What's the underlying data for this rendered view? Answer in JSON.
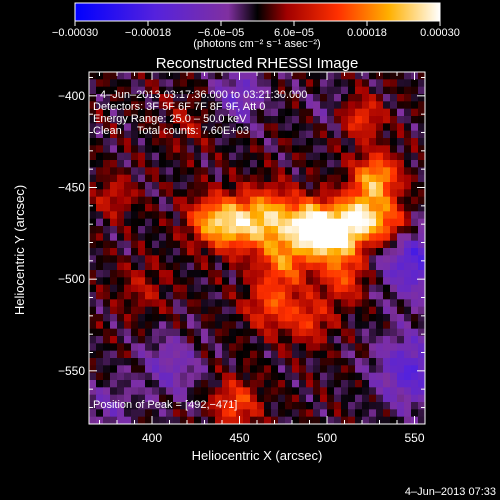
{
  "chart_data": {
    "type": "heatmap",
    "title": "Reconstructed RHESSI Image",
    "xlabel": "Heliocentric X (arcsec)",
    "ylabel": "Heliocentric Y (arcsec)",
    "xlim": [
      364,
      556
    ],
    "ylim": [
      -579,
      -387
    ],
    "x_ticks": [
      400,
      450,
      500,
      550
    ],
    "x_tick_labels": [
      "400",
      "450",
      "500",
      "550"
    ],
    "y_ticks": [
      -400,
      -450,
      -500,
      -550
    ],
    "y_tick_labels": [
      "−400",
      "−450",
      "−500",
      "−550"
    ],
    "colorbar": {
      "min": -0.0003,
      "max": 0.0003,
      "ticks": [
        -0.0003,
        -0.00018,
        -6e-05,
        6e-05,
        0.00018,
        0.0003
      ],
      "tick_labels": [
        "−0.00030",
        "−0.00018",
        "−6.0e−05",
        "6.0e−05",
        "0.00018",
        "0.00030"
      ],
      "units_label": "(photons cm⁻² s⁻¹ asec⁻²)"
    },
    "annotations": {
      "time_range": "4–Jun–2013 03:17:36.000 to 03:21:30.000",
      "detectors": "Detectors: 3F 5F 6F 7F 8F 9F, Att 0",
      "energy": "Energy Range: 25.0 – 50.0 keV",
      "method": "Clean     Total counts: 7.60E+03",
      "peak": "Position of Peak = [492,−471]"
    },
    "peak_position": [
      492,
      -471
    ],
    "total_counts": 7600,
    "energy_range_keV": [
      25.0,
      50.0
    ],
    "timestamp": "4–Jun–2013 07:33",
    "grid_cols": 48,
    "grid_rows": 48,
    "sources": [
      {
        "x": 492,
        "y": -471,
        "amp": 0.0003,
        "sigma": 9
      },
      {
        "x": 505,
        "y": -478,
        "amp": 0.00024,
        "sigma": 10
      },
      {
        "x": 518,
        "y": -466,
        "amp": 0.00023,
        "sigma": 9
      },
      {
        "x": 528,
        "y": -445,
        "amp": 0.00022,
        "sigma": 9
      },
      {
        "x": 535,
        "y": -470,
        "amp": 0.00016,
        "sigma": 9
      },
      {
        "x": 468,
        "y": -467,
        "amp": 0.00022,
        "sigma": 11
      },
      {
        "x": 447,
        "y": -470,
        "amp": 0.00021,
        "sigma": 10
      },
      {
        "x": 432,
        "y": -468,
        "amp": 0.00015,
        "sigma": 9
      },
      {
        "x": 476,
        "y": -490,
        "amp": 0.00016,
        "sigma": 10
      },
      {
        "x": 468,
        "y": -514,
        "amp": 0.00013,
        "sigma": 10
      },
      {
        "x": 490,
        "y": -522,
        "amp": 0.00011,
        "sigma": 9
      },
      {
        "x": 510,
        "y": -500,
        "amp": 0.00012,
        "sigma": 9
      },
      {
        "x": 520,
        "y": -412,
        "amp": 0.00012,
        "sigma": 8
      },
      {
        "x": 448,
        "y": -568,
        "amp": 0.00014,
        "sigma": 9
      },
      {
        "x": 378,
        "y": -455,
        "amp": 8e-05,
        "sigma": 8
      },
      {
        "x": 420,
        "y": -415,
        "amp": 5e-05,
        "sigma": 10
      },
      {
        "x": 395,
        "y": -505,
        "amp": 6e-05,
        "sigma": 10
      }
    ],
    "negative_regions": [
      {
        "x": 550,
        "y": -490,
        "amp": -0.00016,
        "sigma": 14
      },
      {
        "x": 548,
        "y": -550,
        "amp": -0.00015,
        "sigma": 14
      },
      {
        "x": 410,
        "y": -548,
        "amp": -9e-05,
        "sigma": 12
      },
      {
        "x": 450,
        "y": -400,
        "amp": -0.00011,
        "sigma": 10
      },
      {
        "x": 375,
        "y": -570,
        "amp": -7e-05,
        "sigma": 10
      },
      {
        "x": 500,
        "y": -405,
        "amp": -4e-05,
        "sigma": 8
      }
    ]
  }
}
